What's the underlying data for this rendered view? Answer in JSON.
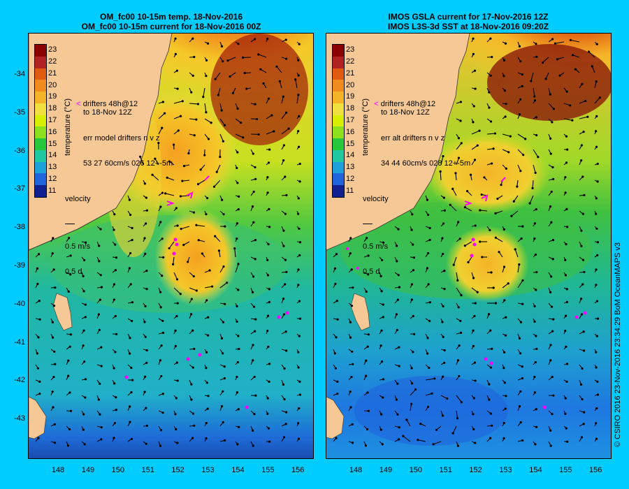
{
  "left_panel": {
    "title_line1": "OM_fc00 10-15m temp. 18-Nov-2016",
    "title_line2": "OM_fc00 10-15m current for 18-Nov-2016 00Z",
    "drifters_line1": "drifters 48h@12",
    "drifters_line2": "to 18-Nov 12Z",
    "err_line1": "err model drifters n v z",
    "err_line2": "53 27 60cm/s 026 12+-5m",
    "velocity_label": "velocity",
    "velocity_scale": "0.5 m/s",
    "velocity_duration": "0.5 d",
    "colorbar_label": "temperature (°C)"
  },
  "right_panel": {
    "title_line1": "IMOS GSLA current for 17-Nov-2016 12Z",
    "title_line2": "IMOS L3S-3d SST at 18-Nov-2016 09:20Z",
    "drifters_line1": "drifters 48h@12",
    "drifters_line2": "to 18-Nov 12Z",
    "err_line1": "err alt drifters n v z",
    "err_line2": "34 44 60cm/s 028 12+-5m",
    "velocity_label": "velocity",
    "velocity_scale": "0.5 m/s",
    "velocity_duration": "0.5 d",
    "colorbar_label": "temperature (°C)"
  },
  "colorbar_ticks": [
    "23",
    "22",
    "21",
    "20",
    "19",
    "18",
    "17",
    "16",
    "15",
    "14",
    "13",
    "12",
    "11"
  ],
  "colorbar_colors": [
    "#8b0000",
    "#b22222",
    "#e05a10",
    "#f08c1e",
    "#f5b428",
    "#f0e040",
    "#d8f000",
    "#8ce01e",
    "#28c83c",
    "#1ec8a0",
    "#1ea0dc",
    "#1e64dc",
    "#102090"
  ],
  "lat_labels": [
    "-34",
    "-35",
    "-36",
    "-37",
    "-38",
    "-39",
    "-40",
    "-41",
    "-42",
    "-43"
  ],
  "lon_labels": [
    "148",
    "149",
    "150",
    "151",
    "152",
    "153",
    "154",
    "155",
    "156"
  ],
  "credit": "© CSIRO 2016   23-Nov-2016 23:34:29 BoM OceanMAPS v3",
  "colors": {
    "background": "#00ccff",
    "land": "#f5c896",
    "drifter": "#ff00ff",
    "arrow": "#000000"
  }
}
